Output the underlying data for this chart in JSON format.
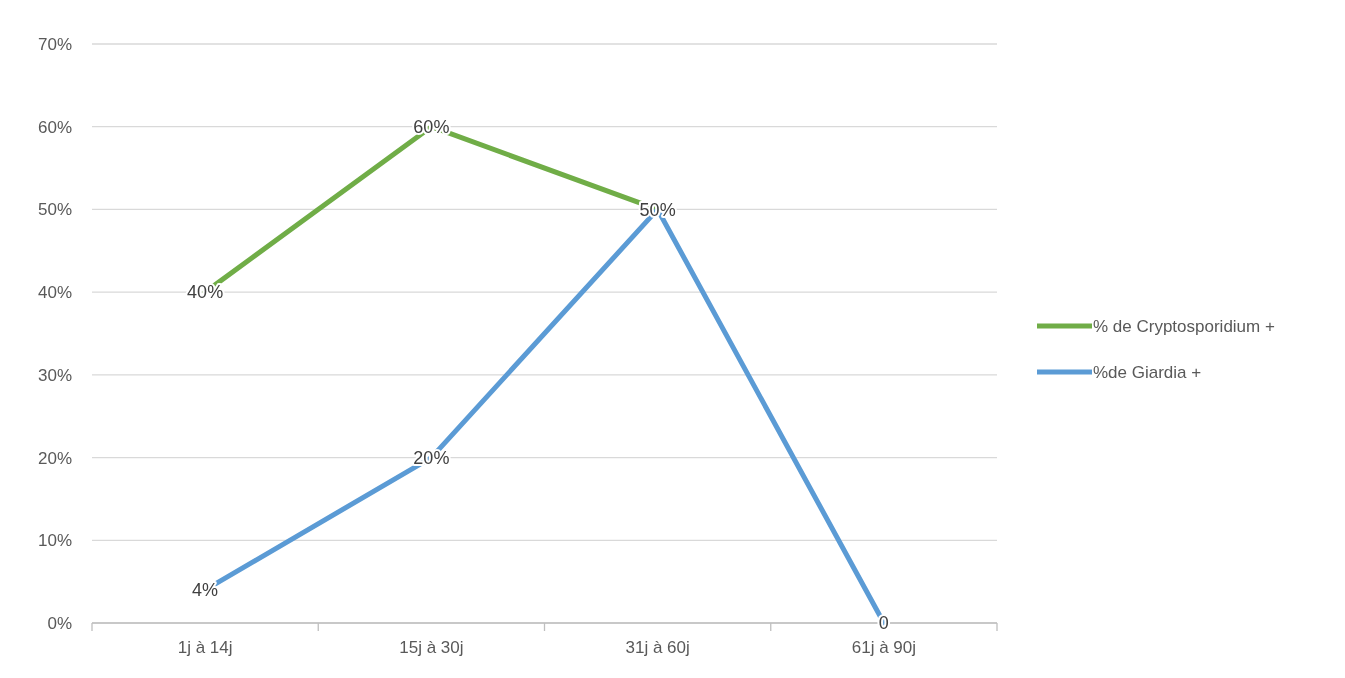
{
  "chart_data": {
    "type": "line",
    "categories": [
      "1j à 14j",
      "15j à 30j",
      "31j à 60j",
      "61j à 90j"
    ],
    "series": [
      {
        "name": "% de Cryptosporidium +",
        "color": "#70ad47",
        "values": [
          40,
          60,
          50,
          null
        ],
        "value_labels": [
          "40%",
          "60%",
          "50%",
          null
        ]
      },
      {
        "name": "%de Giardia +",
        "color": "#5b9bd5",
        "values": [
          4,
          20,
          50,
          0
        ],
        "value_labels": [
          "4%",
          "20%",
          null,
          "0"
        ]
      }
    ],
    "ylim": [
      0,
      70
    ],
    "yticks": [
      {
        "value": 0,
        "label": "0%"
      },
      {
        "value": 10,
        "label": "10%"
      },
      {
        "value": 20,
        "label": "20%"
      },
      {
        "value": 30,
        "label": "30%"
      },
      {
        "value": 40,
        "label": "40%"
      },
      {
        "value": 50,
        "label": "50%"
      },
      {
        "value": 60,
        "label": "60%"
      },
      {
        "value": 70,
        "label": "70%"
      }
    ],
    "grid": "y",
    "legend": "right",
    "marker": "none",
    "line_style": "solid"
  }
}
